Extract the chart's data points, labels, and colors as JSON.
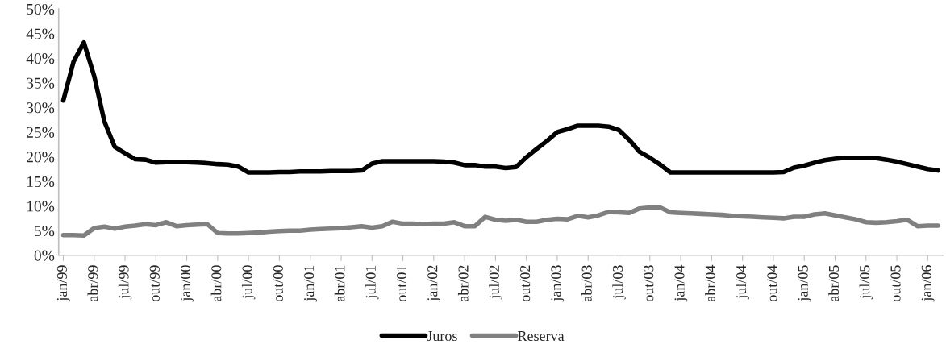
{
  "chart_data": {
    "type": "line",
    "categories": [
      "jan/99",
      null,
      null,
      "abr/99",
      null,
      null,
      "jul/99",
      null,
      null,
      "out/99",
      null,
      null,
      "jan/00",
      null,
      null,
      "abr/00",
      null,
      null,
      "jul/00",
      null,
      null,
      "out/00",
      null,
      null,
      "jan/01",
      null,
      null,
      "abr/01",
      null,
      null,
      "jul/01",
      null,
      null,
      "out/01",
      null,
      null,
      "jan/02",
      null,
      null,
      "abr/02",
      null,
      null,
      "jul/02",
      null,
      null,
      "out/02",
      null,
      null,
      "jan/03",
      null,
      null,
      "abr/03",
      null,
      null,
      "jul/03",
      null,
      null,
      "out/03",
      null,
      null,
      "jan/04",
      null,
      null,
      "abr/04",
      null,
      null,
      "jul/04",
      null,
      null,
      "out/04",
      null,
      null,
      "jan/05",
      null,
      null,
      "abr/05",
      null,
      null,
      "jul/05",
      null,
      null,
      "out/05",
      null,
      null,
      "jan/06",
      null
    ],
    "series": [
      {
        "name": "Juros",
        "color": "#000000",
        "values": [
          31.4,
          39.3,
          43.2,
          36.4,
          27.1,
          22.0,
          20.7,
          19.5,
          19.4,
          18.8,
          18.9,
          18.9,
          18.9,
          18.8,
          18.7,
          18.5,
          18.4,
          18.0,
          16.8,
          16.8,
          16.8,
          16.9,
          16.9,
          17.0,
          17.0,
          17.0,
          17.1,
          17.1,
          17.1,
          17.2,
          18.6,
          19.1,
          19.1,
          19.1,
          19.1,
          19.1,
          19.1,
          19.0,
          18.8,
          18.3,
          18.3,
          18.0,
          18.0,
          17.7,
          17.9,
          19.9,
          21.6,
          23.2,
          25.0,
          25.6,
          26.3,
          26.3,
          26.3,
          26.1,
          25.4,
          23.4,
          21.0,
          19.8,
          18.4,
          16.8,
          16.8,
          16.8,
          16.8,
          16.8,
          16.8,
          16.8,
          16.8,
          16.8,
          16.8,
          16.8,
          16.9,
          17.8,
          18.2,
          18.8,
          19.3,
          19.6,
          19.8,
          19.8,
          19.8,
          19.7,
          19.4,
          19.0,
          18.5,
          18.0,
          17.5,
          17.2
        ]
      },
      {
        "name": "Reserva",
        "color": "#808080",
        "values": [
          4.1,
          4.1,
          4.0,
          5.5,
          5.8,
          5.4,
          5.8,
          6.0,
          6.3,
          6.1,
          6.7,
          5.9,
          6.1,
          6.2,
          6.3,
          4.5,
          4.4,
          4.4,
          4.5,
          4.6,
          4.8,
          4.9,
          5.0,
          5.0,
          5.2,
          5.3,
          5.4,
          5.5,
          5.7,
          5.9,
          5.6,
          5.9,
          6.8,
          6.4,
          6.4,
          6.3,
          6.4,
          6.4,
          6.7,
          5.9,
          5.9,
          7.8,
          7.2,
          7.0,
          7.2,
          6.8,
          6.8,
          7.2,
          7.4,
          7.3,
          8.0,
          7.7,
          8.1,
          8.8,
          8.7,
          8.6,
          9.5,
          9.7,
          9.7,
          8.7,
          8.6,
          8.5,
          8.4,
          8.3,
          8.2,
          8.0,
          7.9,
          7.8,
          7.7,
          7.6,
          7.5,
          7.8,
          7.8,
          8.3,
          8.5,
          8.1,
          7.7,
          7.3,
          6.7,
          6.6,
          6.7,
          6.9,
          7.2,
          5.9,
          6.0,
          6.0
        ]
      }
    ],
    "ylim": [
      0,
      50
    ],
    "yticks": [
      {
        "value": 0,
        "label": "0%"
      },
      {
        "value": 5,
        "label": "5%"
      },
      {
        "value": 10,
        "label": "10%"
      },
      {
        "value": 15,
        "label": "15%"
      },
      {
        "value": 20,
        "label": "20%"
      },
      {
        "value": 25,
        "label": "25%"
      },
      {
        "value": 30,
        "label": "30%"
      },
      {
        "value": 35,
        "label": "35%"
      },
      {
        "value": 40,
        "label": "40%"
      },
      {
        "value": 45,
        "label": "45%"
      },
      {
        "value": 50,
        "label": "50%"
      }
    ],
    "grid": false,
    "legend": "bottom",
    "marker": "none",
    "line_style": "solid"
  }
}
